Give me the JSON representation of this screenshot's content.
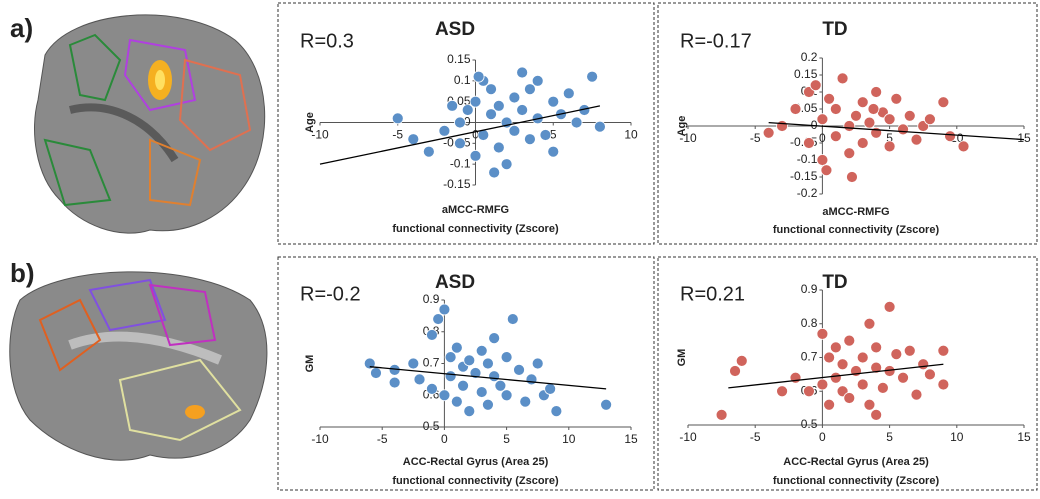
{
  "panel_labels": [
    "a)",
    "b)"
  ],
  "chart_data": [
    {
      "type": "scatter",
      "title": "ASD",
      "annotation": "R=0.3",
      "ylabel": "Age",
      "xlabel": [
        "aMCC-RMFG",
        "functional connectivity (Zscore)"
      ],
      "color": "#5b8fc7",
      "x": [
        -5,
        -4,
        -3,
        -2,
        -1,
        -1,
        -0.5,
        0,
        0,
        0.5,
        0.5,
        1,
        1,
        1.5,
        1.5,
        2,
        2,
        2.5,
        2.5,
        3,
        3,
        3.5,
        3.5,
        4,
        4,
        4.5,
        5,
        5,
        5.5,
        6,
        6.5,
        7,
        7.5,
        8,
        -1.5,
        0.2,
        1.2
      ],
      "y": [
        0.01,
        -0.04,
        -0.07,
        -0.02,
        0,
        -0.05,
        0.03,
        0.05,
        -0.08,
        0.1,
        -0.03,
        0.02,
        0.08,
        -0.06,
        0.04,
        0,
        -0.1,
        0.06,
        -0.02,
        0.12,
        0.03,
        -0.04,
        0.08,
        0.01,
        0.1,
        -0.03,
        0.05,
        -0.07,
        0.02,
        0.07,
        0,
        0.03,
        0.11,
        -0.01,
        0.04,
        0.11,
        -0.12
      ],
      "xlim": [
        -10,
        10
      ],
      "ylim": [
        -0.15,
        0.15
      ],
      "xticks": [
        -10,
        -5,
        0,
        5,
        10
      ],
      "yticks": [
        -0.15,
        -0.1,
        -0.05,
        0,
        0.05,
        0.1,
        0.15
      ],
      "trendline": {
        "x": [
          -10,
          8
        ],
        "y": [
          -0.1,
          0.04
        ]
      }
    },
    {
      "type": "scatter",
      "title": "TD",
      "annotation": "R=-0.17",
      "ylabel": "Age",
      "xlabel": [
        "aMCC-RMFG",
        "functional connectivity (Zscore)"
      ],
      "color": "#d0645c",
      "x": [
        -4,
        -3,
        -2,
        -1,
        -1,
        0,
        0,
        0.5,
        1,
        1,
        1.5,
        2,
        2,
        2.5,
        3,
        3,
        3.5,
        4,
        4,
        4.5,
        5,
        5,
        5.5,
        6,
        6.5,
        7,
        7.5,
        8,
        9,
        9.5,
        10.5,
        -0.5,
        0.3,
        2.2,
        3.8
      ],
      "y": [
        -0.02,
        0,
        0.05,
        -0.05,
        0.1,
        0.02,
        -0.1,
        0.08,
        -0.03,
        0.05,
        0.14,
        -0.08,
        0,
        0.03,
        -0.05,
        0.07,
        0.01,
        -0.02,
        0.1,
        0.04,
        -0.06,
        0.02,
        0.08,
        -0.01,
        0.03,
        -0.04,
        0,
        0.02,
        0.07,
        -0.03,
        -0.06,
        0.12,
        -0.13,
        -0.15,
        0.05
      ],
      "xlim": [
        -10,
        15
      ],
      "ylim": [
        -0.2,
        0.2
      ],
      "xticks": [
        -10,
        -5,
        0,
        5,
        10,
        15
      ],
      "yticks": [
        -0.2,
        -0.15,
        -0.1,
        -0.05,
        0,
        0.05,
        0.1,
        0.15,
        0.2
      ],
      "trendline": {
        "x": [
          -4,
          15
        ],
        "y": [
          0.01,
          -0.04
        ]
      }
    },
    {
      "type": "scatter",
      "title": "ASD",
      "annotation": "R=-0.2",
      "ylabel": "GM",
      "xlabel": [
        "ACC-Rectal Gyrus (Area 25)",
        "functional connectivity (Zscore)"
      ],
      "color": "#5b8fc7",
      "x": [
        -6,
        -5.5,
        -4,
        -4,
        -2.5,
        -2,
        -1,
        -1,
        -0.5,
        0,
        0,
        0.5,
        0.5,
        1,
        1,
        1.5,
        1.5,
        2,
        2,
        2.5,
        3,
        3,
        3.5,
        3.5,
        4,
        4,
        4.5,
        5,
        5,
        5.5,
        6,
        6.5,
        7,
        7.5,
        8,
        8.5,
        9,
        13
      ],
      "y": [
        0.7,
        0.67,
        0.68,
        0.64,
        0.7,
        0.65,
        0.62,
        0.79,
        0.84,
        0.87,
        0.6,
        0.72,
        0.66,
        0.75,
        0.58,
        0.69,
        0.63,
        0.71,
        0.55,
        0.67,
        0.74,
        0.61,
        0.7,
        0.57,
        0.66,
        0.78,
        0.63,
        0.72,
        0.6,
        0.84,
        0.68,
        0.58,
        0.65,
        0.7,
        0.6,
        0.62,
        0.55,
        0.57
      ],
      "xlim": [
        -10,
        15
      ],
      "ylim": [
        0.5,
        0.9
      ],
      "xticks": [
        -10,
        -5,
        0,
        5,
        10,
        15
      ],
      "yticks": [
        0.5,
        0.6,
        0.7,
        0.8,
        0.9
      ],
      "trendline": {
        "x": [
          -6,
          13
        ],
        "y": [
          0.69,
          0.62
        ]
      }
    },
    {
      "type": "scatter",
      "title": "TD",
      "annotation": "R=0.21",
      "ylabel": "GM",
      "xlabel": [
        "ACC-Rectal Gyrus (Area 25)",
        "functional connectivity (Zscore)"
      ],
      "color": "#d0645c",
      "x": [
        -7.5,
        -6.5,
        -6,
        -3,
        -2,
        -1,
        0,
        0,
        0.5,
        0.5,
        1,
        1,
        1.5,
        1.5,
        2,
        2,
        2.5,
        3,
        3,
        3.5,
        3.5,
        4,
        4,
        4.5,
        5,
        5,
        5.5,
        6,
        6.5,
        7,
        7.5,
        8,
        9,
        9,
        4
      ],
      "y": [
        0.53,
        0.66,
        0.69,
        0.6,
        0.64,
        0.6,
        0.62,
        0.77,
        0.7,
        0.56,
        0.73,
        0.64,
        0.68,
        0.6,
        0.75,
        0.58,
        0.66,
        0.7,
        0.62,
        0.8,
        0.56,
        0.67,
        0.73,
        0.61,
        0.85,
        0.66,
        0.71,
        0.64,
        0.72,
        0.59,
        0.68,
        0.65,
        0.72,
        0.62,
        0.53
      ],
      "xlim": [
        -10,
        15
      ],
      "ylim": [
        0.5,
        0.9
      ],
      "xticks": [
        -10,
        -5,
        0,
        5,
        10,
        15
      ],
      "yticks": [
        0.5,
        0.6,
        0.7,
        0.8,
        0.9
      ],
      "trendline": {
        "x": [
          -7,
          9
        ],
        "y": [
          0.61,
          0.68
        ]
      }
    }
  ]
}
